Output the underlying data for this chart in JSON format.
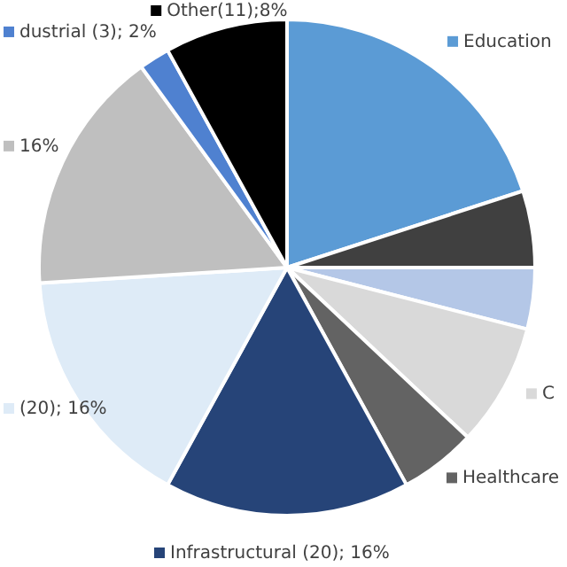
{
  "chart_data": {
    "type": "pie",
    "categories": [
      "Education",
      null,
      null,
      "C",
      "Healthcare",
      "Infrastructural (20); 16%",
      "(20); 16%",
      "16%",
      "dustrial (3); 2%",
      "Other(11);8%"
    ],
    "legend": "right",
    "values": [
      20,
      5,
      4,
      8,
      5,
      16,
      16,
      16,
      2,
      8
    ],
    "colors": [
      "#5b9bd5",
      "#404040",
      "#b4c7e7",
      "#d9d9d9",
      "#636363",
      "#264478",
      "#deebf7",
      "#bfbfbf",
      "#4f81d0",
      "#000000"
    ]
  }
}
